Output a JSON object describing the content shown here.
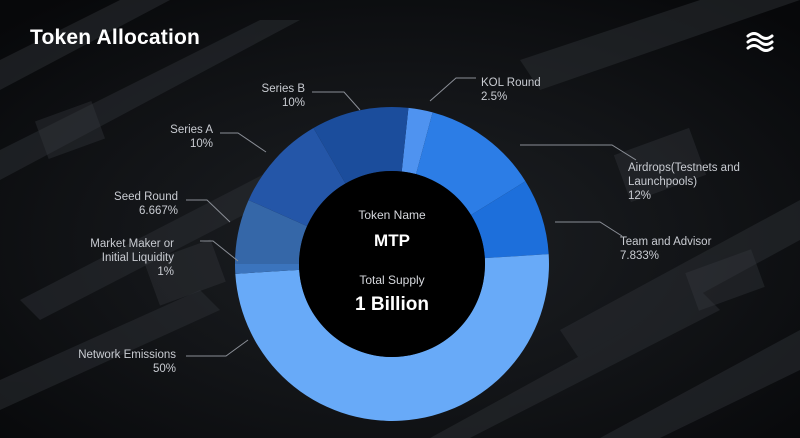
{
  "title": "Token Allocation",
  "logo_icon": "wave-lines-logo",
  "center": {
    "name_label": "Token Name",
    "name_value": "MTP",
    "supply_label": "Total Supply",
    "supply_value": "1 Billion"
  },
  "chart_data": {
    "type": "donut",
    "title": "Token Allocation",
    "slices": [
      {
        "label": "KOL Round",
        "value": 2.5,
        "value_label": "2.5%",
        "color": "#4f93f0"
      },
      {
        "label": "Airdrops(Testnets and Launchpools)",
        "value": 12,
        "value_label": "12%",
        "color": "#2c7de6"
      },
      {
        "label": "Team and Advisor",
        "value": 7.833,
        "value_label": "7.833%",
        "color": "#1d6fdb"
      },
      {
        "label": "Network Emissions",
        "value": 50,
        "value_label": "50%",
        "color": "#68aaf8"
      },
      {
        "label": "Market Maker or Initial Liquidity",
        "value": 1,
        "value_label": "1%",
        "color": "#3b74bd"
      },
      {
        "label": "Seed Round",
        "value": 6.667,
        "value_label": "6.667%",
        "color": "#3567a8"
      },
      {
        "label": "Series A",
        "value": 10,
        "value_label": "10%",
        "color": "#2456a8"
      },
      {
        "label": "Series B",
        "value": 10,
        "value_label": "10%",
        "color": "#1b4d9c"
      }
    ]
  }
}
